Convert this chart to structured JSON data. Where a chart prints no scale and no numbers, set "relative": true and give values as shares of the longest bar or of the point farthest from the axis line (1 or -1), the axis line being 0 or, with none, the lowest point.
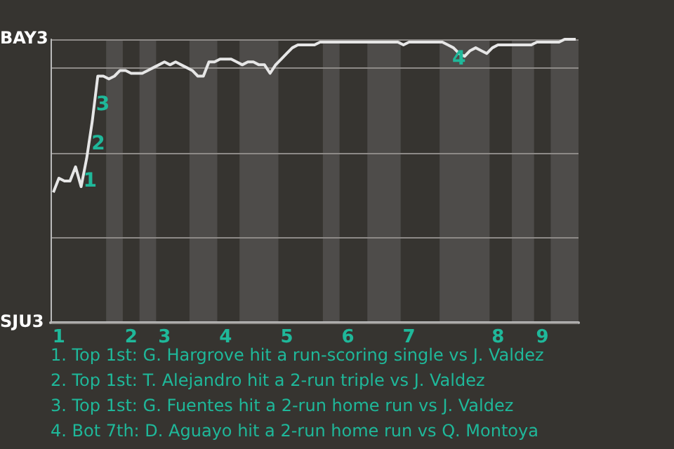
{
  "chart_data": {
    "type": "line",
    "relative": true,
    "categories": [
      null,
      "1",
      null,
      null,
      null,
      null,
      null,
      null,
      null,
      null,
      null,
      null,
      null,
      null,
      "2",
      null,
      null,
      null,
      null,
      null,
      "3",
      null,
      null,
      null,
      null,
      null,
      null,
      null,
      null,
      null,
      null,
      "4",
      null,
      null,
      null,
      null,
      null,
      null,
      null,
      null,
      null,
      null,
      "5",
      null,
      null,
      null,
      null,
      null,
      null,
      null,
      null,
      null,
      null,
      "6",
      null,
      null,
      null,
      null,
      null,
      null,
      null,
      null,
      null,
      null,
      "7",
      null,
      null,
      null,
      null,
      null,
      null,
      null,
      null,
      null,
      null,
      null,
      null,
      null,
      null,
      null,
      "8",
      null,
      null,
      null,
      null,
      null,
      null,
      null,
      "9",
      null,
      null,
      null,
      null,
      null,
      null
    ],
    "series": [
      {
        "color": "#e6e6e6",
        "values": [
          0.46,
          0.51,
          0.5,
          0.5,
          0.55,
          0.48,
          0.58,
          0.71,
          0.87,
          0.87,
          0.86,
          0.87,
          0.89,
          0.89,
          0.88,
          0.88,
          0.88,
          0.89,
          0.9,
          0.91,
          0.92,
          0.91,
          0.92,
          0.91,
          0.9,
          0.89,
          0.87,
          0.87,
          0.92,
          0.92,
          0.93,
          0.93,
          0.93,
          0.92,
          0.91,
          0.92,
          0.92,
          0.91,
          0.91,
          0.88,
          0.91,
          0.93,
          0.95,
          0.97,
          0.98,
          0.98,
          0.98,
          0.98,
          0.99,
          0.99,
          0.99,
          0.99,
          0.99,
          0.99,
          0.99,
          0.99,
          0.99,
          0.99,
          0.99,
          0.99,
          0.99,
          0.99,
          0.99,
          0.98,
          0.99,
          0.99,
          0.99,
          0.99,
          0.99,
          0.99,
          0.99,
          0.98,
          0.97,
          0.95,
          0.94,
          0.96,
          0.97,
          0.96,
          0.95,
          0.97,
          0.98,
          0.98,
          0.98,
          0.98,
          0.98,
          0.98,
          0.98,
          0.99,
          0.99,
          0.99,
          0.99,
          0.99,
          1,
          1,
          1
        ]
      }
    ],
    "grid": "y",
    "marker": "none",
    "annotations": [
      "1",
      "2",
      "3",
      "4",
      "BAY3",
      "SJU3",
      "1. Top 1st: G. Hargrove hit a run-scoring single vs J. Valdez",
      "2. Top 1st: T. Alejandro hit a 2-run triple vs J. Valdez",
      "3. Top 1st: G. Fuentes hit a 2-run home run vs J. Valdez",
      "4. Bot 7th: D. Aguayo hit a 2-run home run vs Q. Montoya"
    ]
  }
}
